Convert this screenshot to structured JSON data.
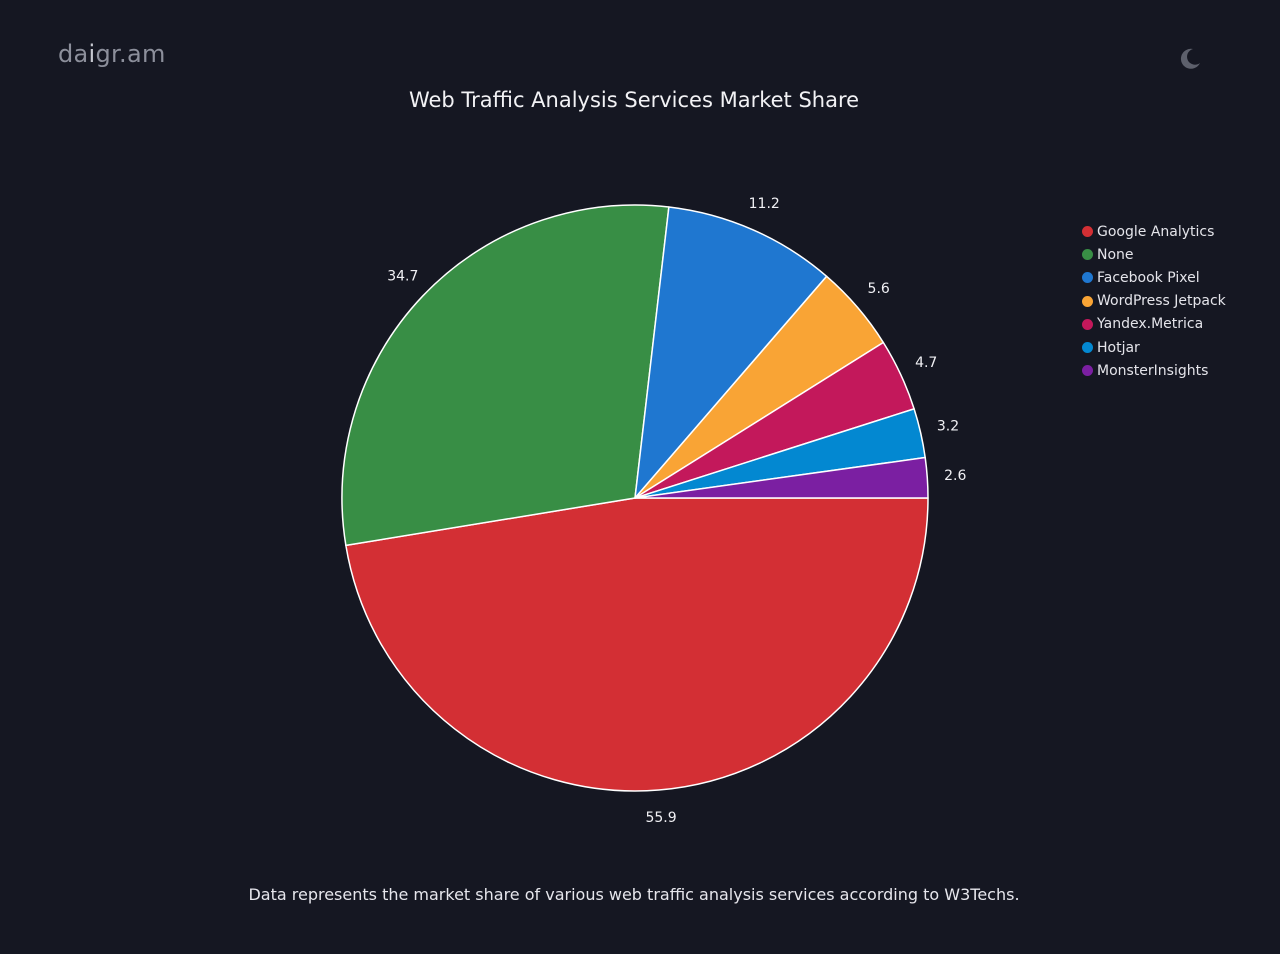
{
  "app": {
    "logo_prefix": "da",
    "logo_highlight": "i",
    "logo_suffix": "gr.am",
    "theme_toggle_icon": "moon-icon"
  },
  "chart_data": {
    "type": "pie",
    "title": "Web Traffic Analysis Services Market Share",
    "categories": [
      "Google Analytics",
      "None",
      "Facebook Pixel",
      "WordPress Jetpack",
      "Yandex.Metrica",
      "Hotjar",
      "MonsterInsights"
    ],
    "values": [
      55.9,
      34.7,
      11.2,
      5.6,
      4.7,
      3.2,
      2.6
    ],
    "labels": [
      "55.9",
      "34.7",
      "11.2",
      "5.6",
      "4.7",
      "3.2",
      "2.6"
    ],
    "colors": [
      "#d32f34",
      "#388e45",
      "#1f77d0",
      "#f9a435",
      "#c3185b",
      "#0388d1",
      "#7b1fa2"
    ],
    "legend_position": "right",
    "slice_border_color": "#ffffff"
  },
  "caption": "Data represents the market share of various web traffic analysis services according to W3Techs."
}
